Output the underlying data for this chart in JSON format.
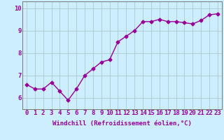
{
  "x": [
    0,
    1,
    2,
    3,
    4,
    5,
    6,
    7,
    8,
    9,
    10,
    11,
    12,
    13,
    14,
    15,
    16,
    17,
    18,
    19,
    20,
    21,
    22,
    23
  ],
  "y": [
    6.6,
    6.4,
    6.4,
    6.7,
    6.3,
    5.9,
    6.4,
    7.0,
    7.3,
    7.6,
    7.7,
    8.5,
    8.75,
    9.0,
    9.4,
    9.4,
    9.5,
    9.4,
    9.4,
    9.35,
    9.3,
    9.45,
    9.7,
    9.75
  ],
  "line_color": "#990099",
  "marker": "D",
  "marker_size": 2.5,
  "bg_color": "#cceeff",
  "grid_color": "#aacccc",
  "xlabel": "Windchill (Refroidissement éolien,°C)",
  "xlim": [
    -0.5,
    23.5
  ],
  "ylim": [
    5.5,
    10.3
  ],
  "yticks": [
    6,
    7,
    8,
    9,
    10
  ],
  "xtick_labels": [
    "0",
    "1",
    "2",
    "3",
    "4",
    "5",
    "6",
    "7",
    "8",
    "9",
    "10",
    "11",
    "12",
    "13",
    "14",
    "15",
    "16",
    "17",
    "18",
    "19",
    "20",
    "21",
    "22",
    "23"
  ],
  "xlabel_fontsize": 6.5,
  "tick_fontsize": 6.5,
  "line_width": 1.0
}
